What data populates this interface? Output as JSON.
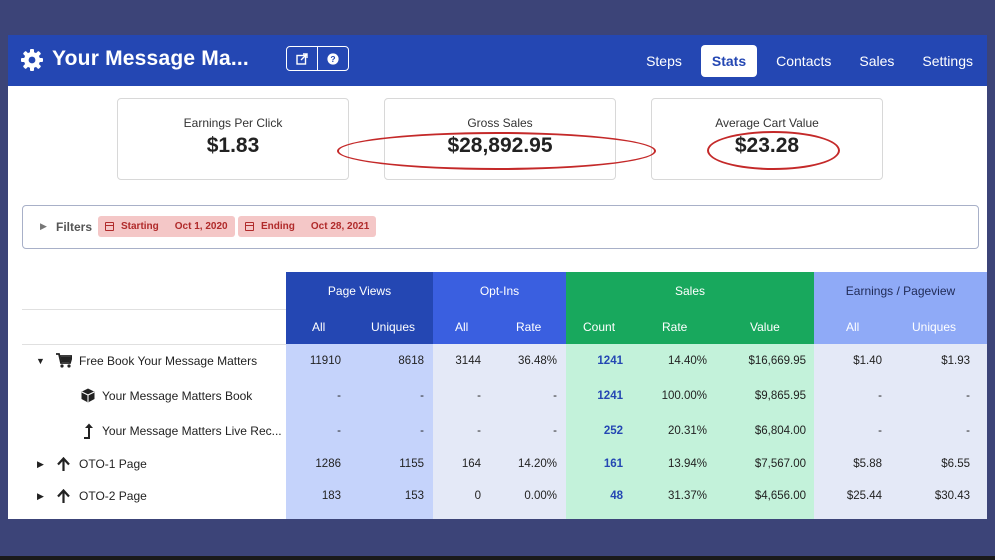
{
  "header": {
    "title": "Your Message Ma...",
    "nav": [
      {
        "label": "Steps",
        "active": false
      },
      {
        "label": "Stats",
        "active": true
      },
      {
        "label": "Contacts",
        "active": false
      },
      {
        "label": "Sales",
        "active": false
      },
      {
        "label": "Settings",
        "active": false
      }
    ],
    "icons": [
      "gear-icon",
      "external-link-icon",
      "question-icon"
    ]
  },
  "cards": [
    {
      "label": "Earnings Per Click",
      "value": "$1.83"
    },
    {
      "label": "Gross Sales",
      "value": "$28,892.95"
    },
    {
      "label": "Average Cart Value",
      "value": "$23.28"
    }
  ],
  "filters": {
    "label": "Filters",
    "starting_label": "Starting",
    "starting_date": "Oct 1, 2020",
    "ending_label": "Ending",
    "ending_date": "Oct 28, 2021"
  },
  "table": {
    "groups": [
      {
        "label": "Page Views",
        "color": "#2447b3",
        "bg": "#c5d3fb",
        "subs": [
          "All",
          "Uniques"
        ]
      },
      {
        "label": "Opt-Ins",
        "color": "#3a5fe0",
        "bg": "#e4e9f7",
        "subs": [
          "All",
          "Rate"
        ]
      },
      {
        "label": "Sales",
        "color": "#18a85d",
        "bg": "#c3f2da",
        "subs": [
          "Count",
          "Rate",
          "Value"
        ]
      },
      {
        "label": "Earnings / Pageview",
        "color": "#8faaf7",
        "bg": "#e4e9f7",
        "subs": [
          "All",
          "Uniques"
        ]
      }
    ],
    "rows": [
      {
        "name": "Free Book Your Message Matters",
        "icon": "cart-icon",
        "caret": "down",
        "indent": 0,
        "values": [
          "11910",
          "8618",
          "3144",
          "36.48%",
          "1241",
          "14.40%",
          "$16,669.95",
          "$1.40",
          "$1.93"
        ]
      },
      {
        "name": "Your Message Matters Book",
        "icon": "cube-icon",
        "caret": "",
        "indent": 1,
        "values": [
          "-",
          "-",
          "-",
          "-",
          "1241",
          "100.00%",
          "$9,865.95",
          "-",
          "-"
        ]
      },
      {
        "name": "Your Message Matters Live Rec...",
        "icon": "level-up-icon",
        "caret": "",
        "indent": 1,
        "values": [
          "-",
          "-",
          "-",
          "-",
          "252",
          "20.31%",
          "$6,804.00",
          "-",
          "-"
        ]
      },
      {
        "name": "OTO-1 Page",
        "icon": "arrow-up-icon",
        "caret": "right",
        "indent": 0,
        "values": [
          "1286",
          "1155",
          "164",
          "14.20%",
          "161",
          "13.94%",
          "$7,567.00",
          "$5.88",
          "$6.55"
        ]
      },
      {
        "name": "OTO-2 Page",
        "icon": "arrow-up-icon",
        "caret": "right",
        "indent": 0,
        "values": [
          "183",
          "153",
          "0",
          "0.00%",
          "48",
          "31.37%",
          "$4,656.00",
          "$25.44",
          "$30.43"
        ]
      }
    ]
  },
  "colors": {
    "header": "#2447b3",
    "annotation": "#c42929",
    "chip_bg": "#f4c7c7",
    "chip_text": "#b02a2a"
  }
}
